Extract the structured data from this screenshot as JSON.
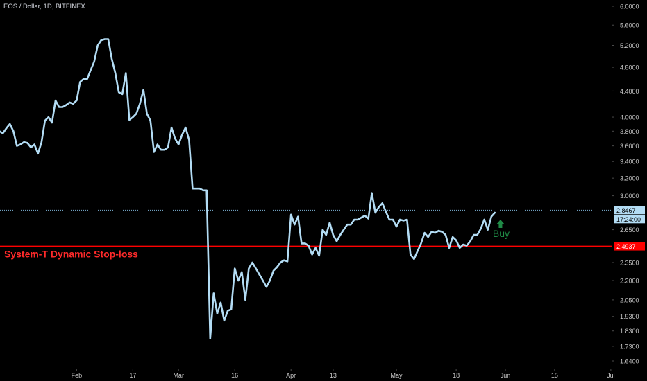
{
  "header": {
    "symbol_title": "EOS / Dollar, 1D, BITFINEX"
  },
  "chart_data": {
    "type": "line",
    "title": "",
    "xlabel": "",
    "ylabel": "",
    "y_scale": "log",
    "ylim": [
      1.58,
      6.1
    ],
    "grid": false,
    "line_color": "#b3dcf4",
    "x_ticks": [
      {
        "label": "Feb",
        "day": 23
      },
      {
        "label": "17",
        "day": 39
      },
      {
        "label": "Mar",
        "day": 52
      },
      {
        "label": "16",
        "day": 68
      },
      {
        "label": "Apr",
        "day": 84
      },
      {
        "label": "13",
        "day": 96
      },
      {
        "label": "May",
        "day": 114
      },
      {
        "label": "18",
        "day": 131
      },
      {
        "label": "Jun",
        "day": 145
      },
      {
        "label": "15",
        "day": 159
      },
      {
        "label": "Jul",
        "day": 175
      }
    ],
    "x_range_days": [
      1,
      179
    ],
    "y_ticks": [
      "6.0000",
      "5.6000",
      "5.2000",
      "4.8000",
      "4.4000",
      "4.0000",
      "3.8000",
      "3.6000",
      "3.4000",
      "3.2000",
      "3.0000",
      "2.6500",
      "2.3500",
      "2.2000",
      "2.0500",
      "1.9300",
      "1.8300",
      "1.7300",
      "1.6400"
    ],
    "series": [
      {
        "start_day": 1,
        "values": [
          3.8,
          3.77,
          3.84,
          3.9,
          3.8,
          3.6,
          3.62,
          3.65,
          3.64,
          3.58,
          3.62,
          3.5,
          3.65,
          3.95,
          4.0,
          3.92,
          4.25,
          4.15,
          4.15,
          4.18,
          4.22,
          4.2,
          4.25,
          4.55,
          4.6,
          4.6,
          4.75,
          4.9,
          5.2,
          5.3,
          5.32,
          5.32,
          4.95,
          4.7,
          4.38,
          4.35,
          4.7,
          3.96,
          4.0,
          4.05,
          4.2,
          4.42,
          4.05,
          3.95,
          3.52,
          3.62,
          3.55,
          3.55,
          3.58,
          3.85,
          3.7,
          3.62,
          3.75,
          3.85,
          3.68,
          3.08,
          3.08,
          3.08,
          3.06,
          3.06,
          1.78,
          2.1,
          1.95,
          2.03,
          1.9,
          1.97,
          1.98,
          2.3,
          2.2,
          2.27,
          2.05,
          2.3,
          2.35,
          2.3,
          2.25,
          2.2,
          2.15,
          2.2,
          2.28,
          2.31,
          2.35,
          2.37,
          2.36,
          2.8,
          2.7,
          2.78,
          2.52,
          2.52,
          2.5,
          2.42,
          2.48,
          2.41,
          2.65,
          2.6,
          2.72,
          2.6,
          2.54,
          2.6,
          2.65,
          2.7,
          2.7,
          2.75,
          2.75,
          2.77,
          2.79,
          2.76,
          3.03,
          2.82,
          2.88,
          2.92,
          2.83,
          2.75,
          2.75,
          2.68,
          2.75,
          2.74,
          2.75,
          2.42,
          2.38,
          2.45,
          2.52,
          2.62,
          2.58,
          2.63,
          2.62,
          2.64,
          2.63,
          2.6,
          2.48,
          2.58,
          2.55,
          2.48,
          2.51,
          2.5,
          2.54,
          2.6,
          2.6,
          2.66,
          2.75,
          2.65,
          2.78,
          2.82
        ]
      }
    ],
    "last_price": {
      "value": 2.8467,
      "label": "2.8467",
      "countdown": "17:24:00"
    },
    "stop_loss": {
      "value": 2.4937,
      "label": "2.4937",
      "text": "System-T Dynamic Stop-loss",
      "color": "#ff0000"
    },
    "buy_signal": {
      "label": "Buy",
      "day": 144,
      "color": "#1f8a46"
    }
  }
}
